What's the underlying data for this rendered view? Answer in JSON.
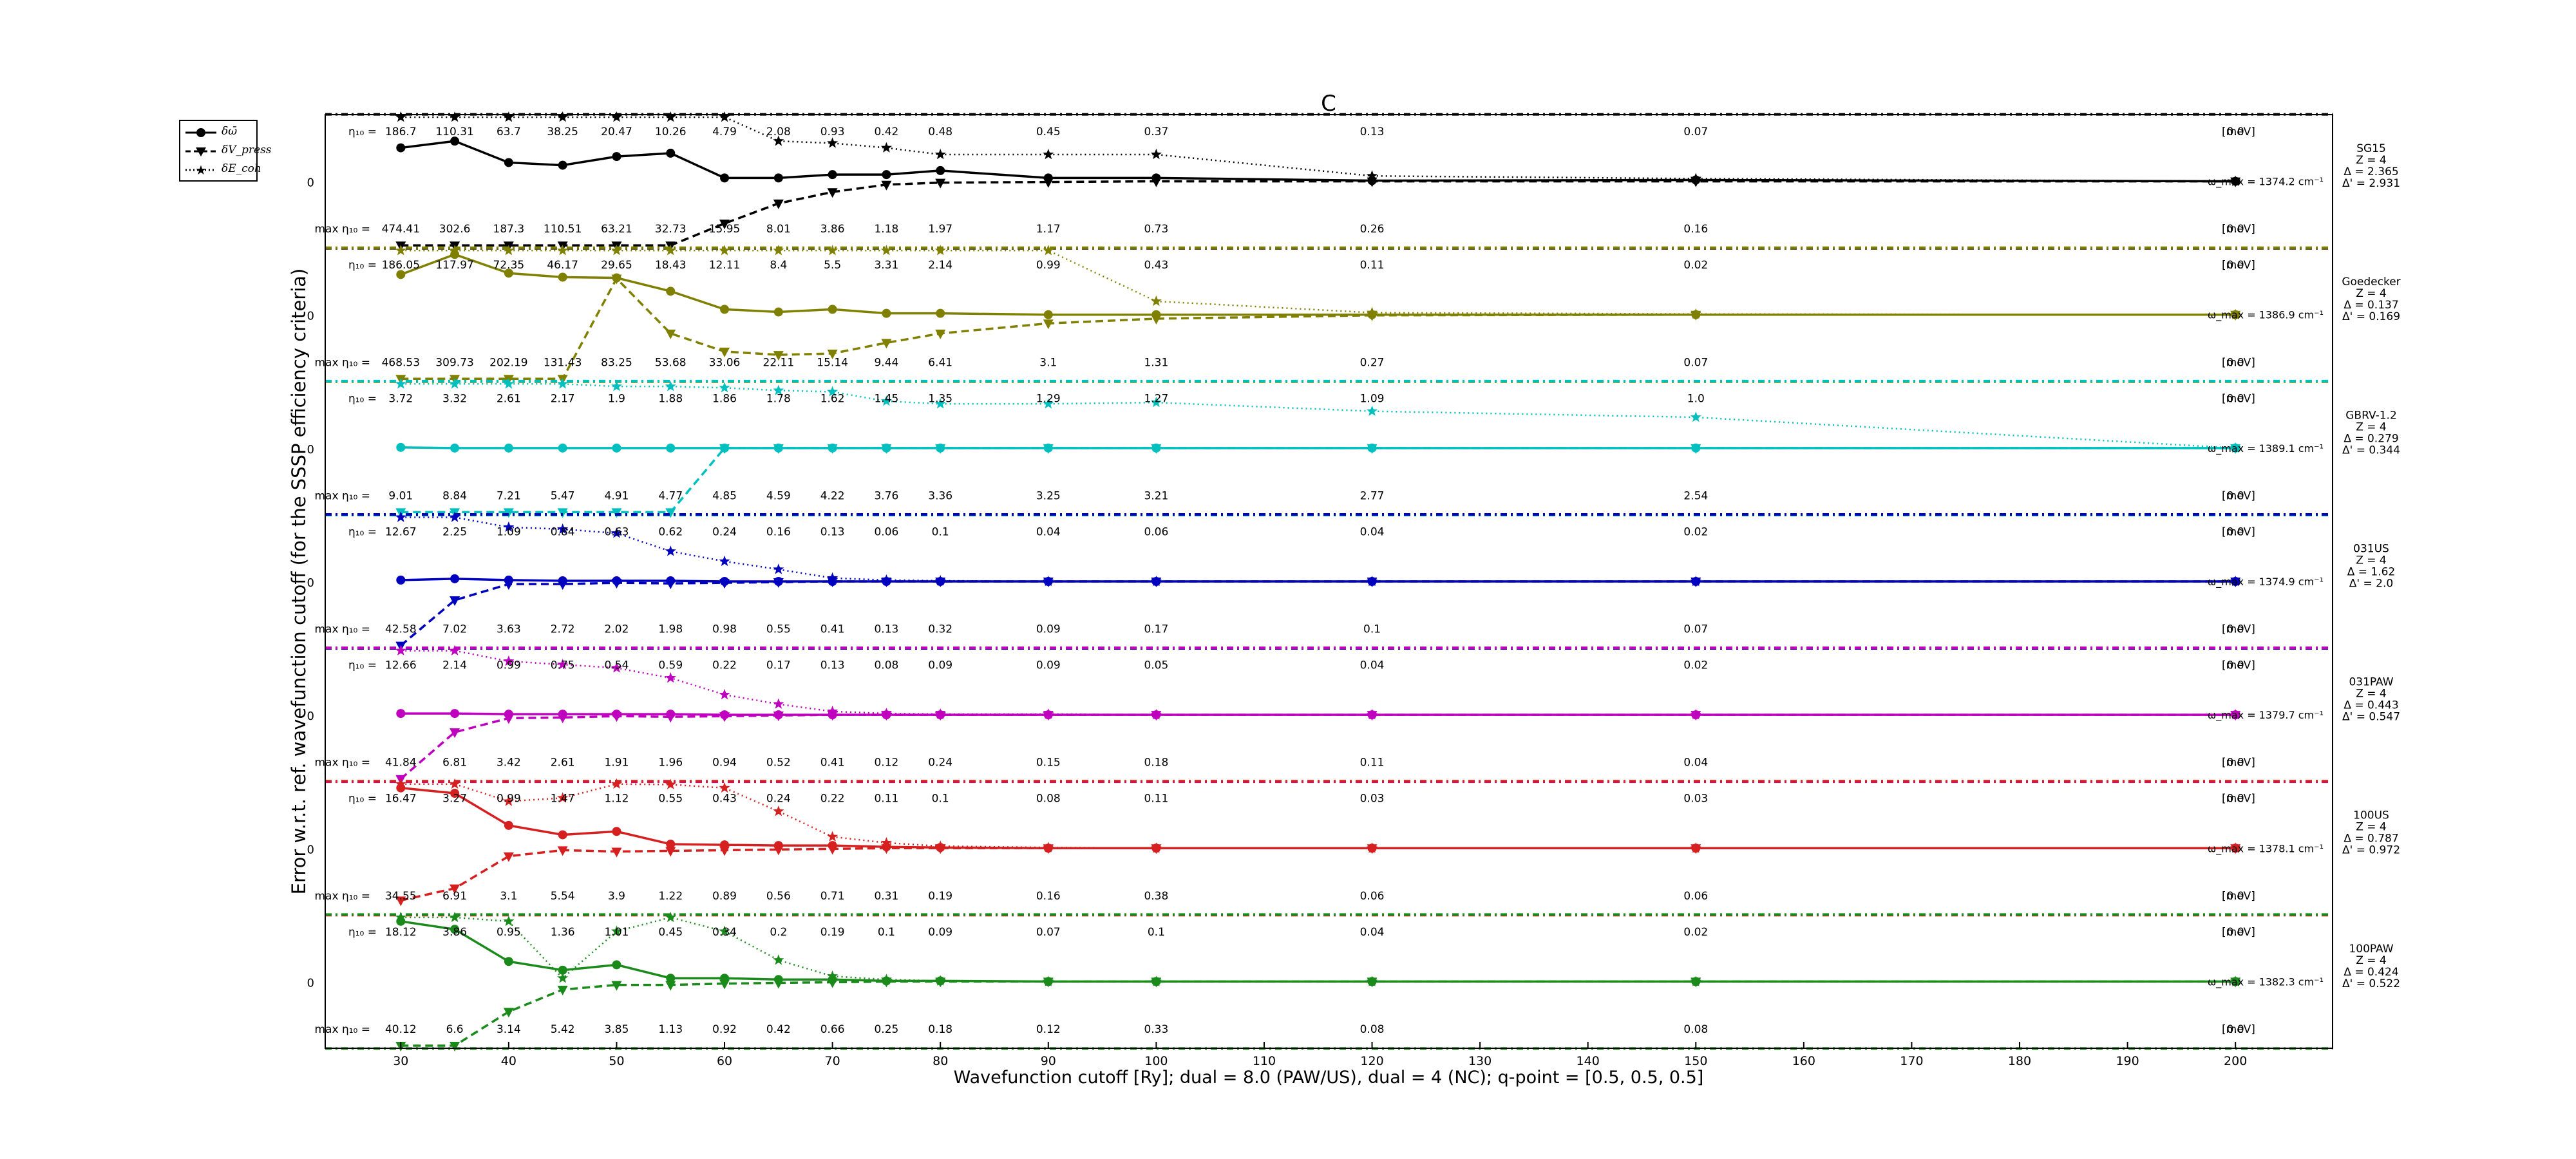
{
  "chart_data": {
    "type": "line",
    "title": "C",
    "xlabel": "Wavefunction cutoff [Ry]; dual = 8.0 (PAW/US), dual = 4 (NC); q-point = [0.5, 0.5, 0.5]",
    "ylabel": "Error w.r.t. ref. wavefunction cutoff (for the SSSP efficiency criteria)",
    "x_ticks": [
      "30",
      "40",
      "50",
      "60",
      "70",
      "80",
      "90",
      "100",
      "110",
      "120",
      "130",
      "140",
      "150",
      "160",
      "170",
      "180",
      "190",
      "200"
    ],
    "xlim": [
      23,
      209
    ],
    "x": [
      30,
      35,
      40,
      45,
      50,
      55,
      60,
      65,
      70,
      75,
      80,
      90,
      100,
      120,
      150,
      200
    ],
    "legend": [
      "δω̄",
      "δV_press",
      "δE_coh"
    ],
    "legend_position": "top-left (outside axes)",
    "zero_label": "0",
    "eta10_prefix": "η₁₀ =",
    "maxeta10_prefix": "max η₁₀ =",
    "unit_label": "[meV]",
    "omega_prefix": "ω_max =",
    "omega_unit": "cm⁻¹",
    "panels": [
      {
        "name": "SG15",
        "color": "#000000",
        "info": [
          "SG15",
          "Z = 4",
          "Δ = 2.365",
          "Δ' = 2.931"
        ],
        "omega": "1374.2",
        "eta10": [
          "186.7",
          "110.31",
          "63.7",
          "38.25",
          "20.47",
          "10.26",
          "4.79",
          "2.08",
          "0.93",
          "0.42",
          "0.48",
          "0.45",
          "0.37",
          "0.13",
          "0.07",
          "0.0"
        ],
        "maxeta10": [
          "474.41",
          "302.6",
          "187.3",
          "110.51",
          "63.21",
          "32.73",
          "15.95",
          "8.01",
          "3.86",
          "1.18",
          "1.97",
          "1.17",
          "0.73",
          "0.26",
          "0.16",
          "0.0"
        ],
        "omega_err": [
          0.5,
          0.6,
          0.28,
          0.24,
          0.37,
          0.42,
          0.05,
          0.05,
          0.1,
          0.1,
          0.16,
          0.05,
          0.05,
          0.01,
          0.02,
          0
        ],
        "pressure": [
          -5,
          -5,
          -5,
          -5,
          -5,
          -1.3,
          -0.63,
          -0.33,
          -0.16,
          -0.05,
          -0.02,
          -0.01,
          0,
          0,
          0,
          0
        ],
        "cohesive": [
          5,
          5,
          5,
          5,
          5,
          5,
          5,
          0.6,
          0.57,
          0.5,
          0.4,
          0.4,
          0.4,
          0.08,
          0.04,
          0
        ]
      },
      {
        "name": "Goedecker",
        "color": "#808000",
        "info": [
          "Goedecker",
          "Z = 4",
          "Δ = 0.137",
          "Δ' = 0.169"
        ],
        "omega": "1386.9",
        "eta10": [
          "186.05",
          "117.97",
          "72.35",
          "46.17",
          "29.65",
          "18.43",
          "12.11",
          "8.4",
          "5.5",
          "3.31",
          "2.14",
          "0.99",
          "0.43",
          "0.11",
          "0.02",
          "0.0"
        ],
        "maxeta10": [
          "468.53",
          "309.73",
          "202.19",
          "131.43",
          "83.25",
          "53.68",
          "33.06",
          "22.11",
          "15.14",
          "9.44",
          "6.41",
          "3.1",
          "1.31",
          "0.27",
          "0.07",
          "0.0"
        ],
        "omega_err": [
          0.6,
          0.9,
          0.62,
          0.56,
          0.55,
          0.35,
          0.08,
          0.04,
          0.08,
          0.02,
          0.02,
          0,
          0,
          0,
          0,
          0
        ],
        "pressure": [
          -5,
          -5,
          -5,
          -5,
          0.54,
          -0.28,
          -0.55,
          -0.6,
          -0.58,
          -0.42,
          -0.28,
          -0.13,
          -0.06,
          -0.01,
          0,
          0
        ],
        "cohesive": [
          5,
          5,
          5,
          5,
          5,
          5,
          5,
          5,
          5,
          5,
          5,
          5,
          0.2,
          0.03,
          0.01,
          0
        ]
      },
      {
        "name": "GBRV-1.2",
        "color": "#00bfbf",
        "info": [
          "GBRV-1.2",
          "Z = 4",
          "Δ = 0.279",
          "Δ' = 0.344"
        ],
        "omega": "1389.1",
        "eta10": [
          "3.72",
          "3.32",
          "2.61",
          "2.17",
          "1.9",
          "1.88",
          "1.86",
          "1.78",
          "1.62",
          "1.45",
          "1.35",
          "1.29",
          "1.27",
          "1.09",
          "1.0",
          "0.0"
        ],
        "maxeta10": [
          "9.01",
          "8.84",
          "7.21",
          "5.47",
          "4.91",
          "4.77",
          "4.85",
          "4.59",
          "4.22",
          "3.76",
          "3.36",
          "3.25",
          "3.21",
          "2.77",
          "2.54",
          "0.0"
        ],
        "omega_err": [
          0.01,
          0,
          0,
          0,
          0,
          0,
          0,
          0,
          0,
          0,
          0,
          0,
          0,
          0,
          0,
          0
        ],
        "pressure": [
          -5,
          -5,
          -5,
          -5,
          -5,
          -5,
          0,
          0,
          0,
          0,
          0,
          0,
          0,
          0,
          0,
          0
        ],
        "cohesive": [
          5,
          5,
          5,
          1.1,
          0.92,
          0.92,
          0.9,
          0.86,
          0.84,
          0.7,
          0.66,
          0.66,
          0.68,
          0.55,
          0.46,
          0
        ]
      },
      {
        "name": "031US",
        "color": "#0000bf",
        "info": [
          "031US",
          "Z = 4",
          "Δ = 1.62",
          "Δ' = 2.0"
        ],
        "omega": "1374.9",
        "eta10": [
          "12.67",
          "2.25",
          "1.09",
          "0.84",
          "0.63",
          "0.62",
          "0.24",
          "0.16",
          "0.13",
          "0.06",
          "0.1",
          "0.04",
          "0.06",
          "0.04",
          "0.02",
          "0.0"
        ],
        "maxeta10": [
          "42.58",
          "7.02",
          "3.63",
          "2.72",
          "2.02",
          "1.98",
          "0.98",
          "0.55",
          "0.41",
          "0.13",
          "0.32",
          "0.09",
          "0.17",
          "0.1",
          "0.07",
          "0.0"
        ],
        "omega_err": [
          0.02,
          0.04,
          0.02,
          0.01,
          0.01,
          0.01,
          0,
          0,
          0,
          0,
          0,
          0,
          0,
          0,
          0,
          0
        ],
        "pressure": [
          -5,
          -0.28,
          -0.04,
          -0.04,
          -0.02,
          -0.03,
          -0.02,
          -0.01,
          0,
          0,
          0,
          0,
          0,
          0,
          0,
          0
        ],
        "cohesive": [
          5,
          5,
          0.81,
          0.78,
          0.72,
          0.45,
          0.3,
          0.18,
          0.05,
          0.02,
          0.01,
          0,
          0,
          0,
          0,
          0
        ]
      },
      {
        "name": "031PAW",
        "color": "#bf00bf",
        "info": [
          "031PAW",
          "Z = 4",
          "Δ = 0.443",
          "Δ' = 0.547"
        ],
        "omega": "1379.7",
        "eta10": [
          "12.66",
          "2.14",
          "0.99",
          "0.75",
          "0.54",
          "0.59",
          "0.22",
          "0.17",
          "0.13",
          "0.08",
          "0.09",
          "0.09",
          "0.05",
          "0.04",
          "0.02",
          "0.0"
        ],
        "maxeta10": [
          "41.84",
          "6.81",
          "3.42",
          "2.61",
          "1.91",
          "1.96",
          "0.94",
          "0.52",
          "0.41",
          "0.12",
          "0.24",
          "0.15",
          "0.18",
          "0.11",
          "0.04",
          "0.0"
        ],
        "omega_err": [
          0.02,
          0.02,
          0.01,
          0.01,
          0.01,
          0.01,
          0,
          0,
          0,
          0,
          0,
          0,
          0,
          0,
          0,
          0
        ],
        "pressure": [
          -5,
          -0.26,
          -0.05,
          -0.04,
          -0.02,
          -0.03,
          -0.02,
          -0.01,
          0,
          0,
          0,
          0,
          0,
          0,
          0,
          0
        ],
        "cohesive": [
          5,
          5,
          0.8,
          0.75,
          0.7,
          0.55,
          0.3,
          0.16,
          0.05,
          0.02,
          0.01,
          0.01,
          0,
          0,
          0,
          0
        ]
      },
      {
        "name": "100US",
        "color": "#d62020",
        "info": [
          "100US",
          "Z = 4",
          "Δ = 0.787",
          "Δ' = 0.972"
        ],
        "omega": "1378.1",
        "eta10": [
          "16.47",
          "3.27",
          "0.99",
          "1.47",
          "1.12",
          "0.55",
          "0.43",
          "0.24",
          "0.22",
          "0.11",
          "0.1",
          "0.08",
          "0.11",
          "0.03",
          "0.03",
          "0.0"
        ],
        "maxeta10": [
          "34.55",
          "6.91",
          "3.1",
          "5.54",
          "3.9",
          "1.22",
          "0.89",
          "0.56",
          "0.71",
          "0.31",
          "0.19",
          "0.16",
          "0.38",
          "0.06",
          "0.06",
          "0.0"
        ],
        "omega_err": [
          0.9,
          0.82,
          0.34,
          0.2,
          0.25,
          0.06,
          0.05,
          0.04,
          0.04,
          0.02,
          0.01,
          0,
          0,
          0,
          0,
          0
        ],
        "pressure": [
          -0.78,
          -0.6,
          -0.12,
          -0.03,
          -0.05,
          -0.04,
          -0.03,
          -0.02,
          -0.01,
          0,
          0,
          0,
          0,
          0,
          0,
          0
        ],
        "cohesive": [
          5,
          5,
          0.7,
          0.75,
          1.0,
          0.95,
          0.9,
          0.55,
          0.17,
          0.08,
          0.03,
          0.01,
          0,
          0,
          0,
          0
        ]
      },
      {
        "name": "100PAW",
        "color": "#1a8a1a",
        "info": [
          "100PAW",
          "Z = 4",
          "Δ = 0.424",
          "Δ' = 0.522"
        ],
        "omega": "1382.3",
        "eta10": [
          "18.12",
          "3.86",
          "0.95",
          "1.36",
          "1.01",
          "0.45",
          "0.34",
          "0.2",
          "0.19",
          "0.1",
          "0.09",
          "0.07",
          "0.1",
          "0.04",
          "0.02",
          "0.0"
        ],
        "maxeta10": [
          "40.12",
          "6.6",
          "3.14",
          "5.42",
          "3.85",
          "1.13",
          "0.92",
          "0.42",
          "0.66",
          "0.25",
          "0.18",
          "0.12",
          "0.33",
          "0.08",
          "0.08",
          "0.0"
        ],
        "omega_err": [
          0.9,
          0.78,
          0.3,
          0.17,
          0.25,
          0.05,
          0.05,
          0.03,
          0.03,
          0.01,
          0.01,
          0,
          0,
          0,
          0,
          0
        ],
        "pressure": [
          -5,
          -5,
          -0.45,
          -0.12,
          -0.05,
          -0.05,
          -0.03,
          -0.02,
          -0.01,
          0,
          0,
          0,
          0,
          0,
          0,
          0
        ],
        "cohesive": [
          5,
          5,
          0.9,
          0.05,
          0.75,
          1.0,
          0.75,
          0.32,
          0.08,
          0.03,
          0.01,
          0,
          0,
          0,
          0,
          0
        ]
      }
    ]
  }
}
